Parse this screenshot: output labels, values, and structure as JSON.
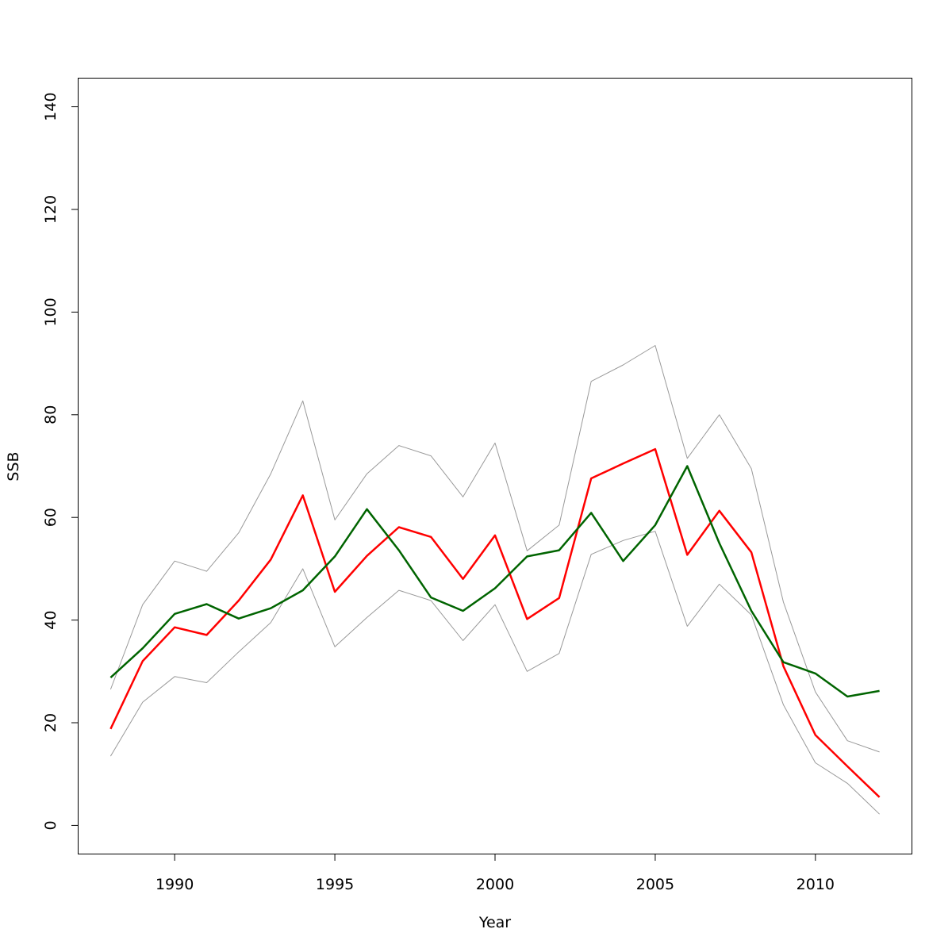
{
  "chart_data": {
    "type": "line",
    "title": "",
    "xlabel": "Year",
    "ylabel": "SSB",
    "xlim": [
      1987.0,
      2013.0
    ],
    "ylim": [
      -5.5,
      145.5
    ],
    "xticks": [
      1990,
      1995,
      2000,
      2005,
      2010
    ],
    "yticks": [
      0,
      20,
      40,
      60,
      80,
      100,
      120,
      140
    ],
    "grid": false,
    "legend": "none",
    "x": [
      1988,
      1989,
      1990,
      1991,
      1992,
      1993,
      1994,
      1995,
      1996,
      1997,
      1998,
      1999,
      2000,
      2001,
      2002,
      2003,
      2004,
      2005,
      2006,
      2007,
      2008,
      2009,
      2010,
      2011,
      2012
    ],
    "series": [
      {
        "color": "#999999",
        "width": 1,
        "values": [
          26.5,
          43.0,
          51.5,
          49.5,
          57.0,
          68.5,
          82.7,
          59.5,
          68.5,
          74.0,
          72.0,
          64.0,
          74.5,
          53.5,
          58.5,
          86.5,
          89.7,
          93.5,
          71.5,
          80.0,
          69.5,
          43.5,
          26.0,
          16.5,
          14.3
        ]
      },
      {
        "color": "#999999",
        "width": 1,
        "values": [
          13.5,
          24.0,
          29.0,
          27.8,
          33.8,
          39.5,
          50.0,
          34.8,
          40.5,
          45.8,
          43.8,
          36.0,
          43.0,
          30.0,
          33.5,
          52.8,
          55.5,
          57.3,
          38.8,
          47.0,
          41.0,
          23.5,
          12.2,
          8.2,
          2.2
        ]
      },
      {
        "color": "#ff0000",
        "width": 2.5,
        "values": [
          18.8,
          32.0,
          38.6,
          37.1,
          43.8,
          51.8,
          64.3,
          45.5,
          52.5,
          58.1,
          56.2,
          48.0,
          56.5,
          40.2,
          44.3,
          67.6,
          70.5,
          73.3,
          52.7,
          61.3,
          53.2,
          31.0,
          17.6,
          11.5,
          5.5
        ]
      },
      {
        "color": "#006400",
        "width": 2.5,
        "values": [
          28.8,
          34.5,
          41.2,
          43.1,
          40.3,
          42.3,
          45.8,
          52.4,
          61.6,
          53.6,
          44.4,
          41.8,
          46.2,
          52.4,
          53.6,
          60.9,
          51.5,
          58.5,
          70.0,
          55.0,
          41.8,
          31.8,
          29.6,
          25.1,
          26.2
        ]
      }
    ]
  }
}
